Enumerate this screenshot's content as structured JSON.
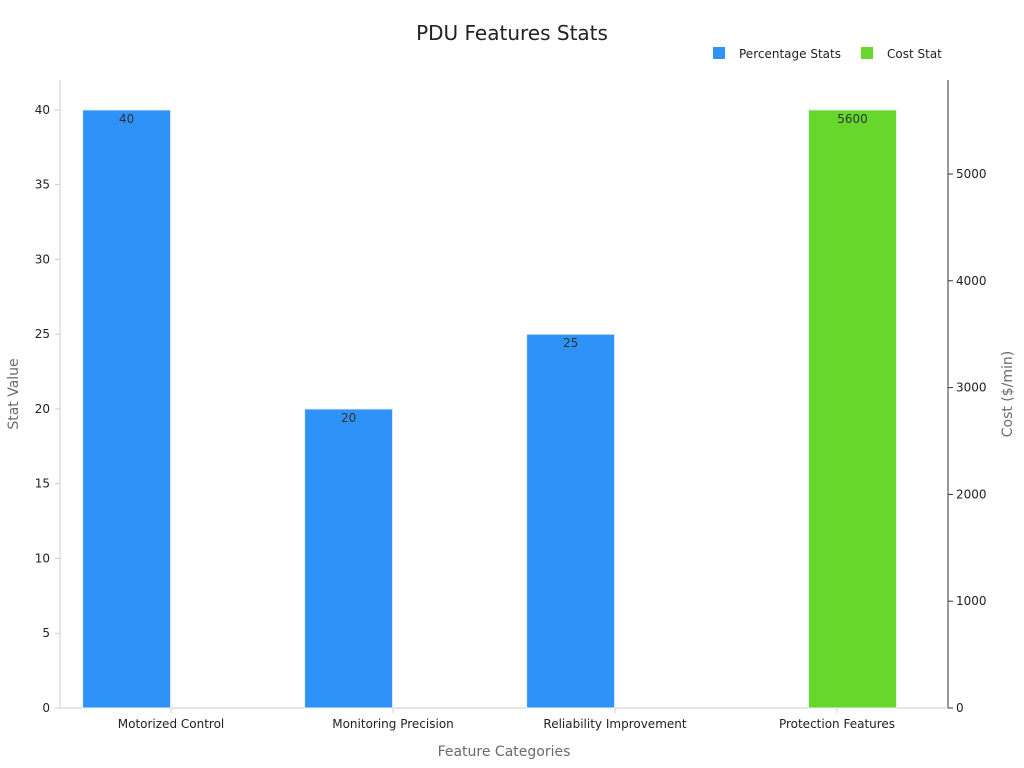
{
  "chart_data": {
    "type": "bar",
    "title": "PDU Features Stats",
    "xlabel": "Feature Categories",
    "ylabel": "Stat Value",
    "y2label": "Cost ($/min)",
    "categories": [
      "Motorized Control",
      "Monitoring Precision",
      "Reliability Improvement",
      "Protection Features"
    ],
    "series": [
      {
        "name": "Percentage Stats",
        "axis": "left",
        "color": "#2f92f8",
        "values": [
          40,
          20,
          25,
          null
        ],
        "labels": [
          "40",
          "20",
          "25",
          ""
        ]
      },
      {
        "name": "Cost Stat",
        "axis": "right",
        "color": "#65d82b",
        "values": [
          null,
          null,
          null,
          5600
        ],
        "labels": [
          "",
          "",
          "",
          "5600"
        ]
      }
    ],
    "ylim": [
      0,
      42
    ],
    "y_ticks": [
      0,
      5,
      10,
      15,
      20,
      25,
      30,
      35,
      40
    ],
    "y2lim": [
      0,
      5880
    ],
    "y2_ticks": [
      0,
      1000,
      2000,
      3000,
      4000,
      5000
    ],
    "grid": false,
    "legend_position": "top-right"
  }
}
